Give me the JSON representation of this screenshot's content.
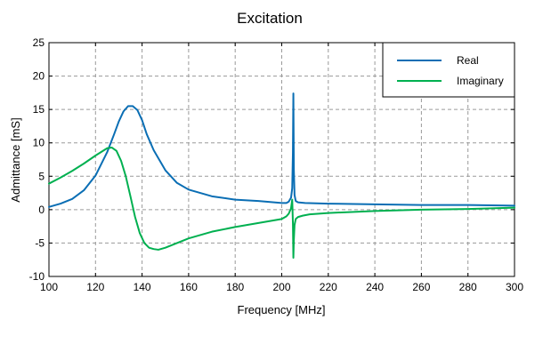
{
  "chart_data": {
    "type": "line",
    "title": "Excitation",
    "xlabel": "Frequency [MHz]",
    "ylabel": "Admittance [mS]",
    "xlim": [
      100,
      300
    ],
    "ylim": [
      -10,
      25
    ],
    "xticks": [
      100,
      120,
      140,
      160,
      180,
      200,
      220,
      240,
      260,
      280,
      300
    ],
    "yticks": [
      -10,
      -5,
      0,
      5,
      10,
      15,
      20,
      25
    ],
    "grid": true,
    "legend_position": "top-right",
    "series": [
      {
        "name": "Real",
        "color": "#0a6eb4",
        "x": [
          100,
          105,
          110,
          115,
          120,
          125,
          128,
          130,
          132,
          134,
          136,
          138,
          140,
          142,
          145,
          150,
          155,
          160,
          170,
          180,
          190,
          200,
          202,
          203,
          204,
          204.5,
          204.8,
          205.0,
          205.2,
          205.5,
          206,
          207,
          210,
          220,
          240,
          260,
          280,
          300
        ],
        "values": [
          0.4,
          0.9,
          1.6,
          2.9,
          5.1,
          8.6,
          11.3,
          13.2,
          14.7,
          15.5,
          15.5,
          14.9,
          13.4,
          11.3,
          8.9,
          5.9,
          4.0,
          3.0,
          2.0,
          1.5,
          1.3,
          1.0,
          1.0,
          1.2,
          1.8,
          3.2,
          8.5,
          17.4,
          6.0,
          2.2,
          1.3,
          1.1,
          1.0,
          0.9,
          0.8,
          0.7,
          0.7,
          0.6
        ]
      },
      {
        "name": "Imaginary",
        "color": "#00b050",
        "x": [
          100,
          105,
          110,
          115,
          120,
          125,
          127,
          129,
          131,
          133,
          135,
          137,
          139,
          141,
          143,
          145,
          147,
          150,
          155,
          160,
          170,
          180,
          190,
          200,
          202,
          203,
          204,
          204.5,
          204.8,
          205.0,
          205.2,
          205.5,
          206,
          207,
          209,
          212,
          220,
          240,
          260,
          280,
          300
        ],
        "values": [
          3.9,
          4.8,
          5.8,
          6.9,
          8.1,
          9.2,
          9.3,
          8.8,
          7.3,
          5.0,
          2.0,
          -1.1,
          -3.5,
          -5.0,
          -5.7,
          -5.9,
          -6.0,
          -5.7,
          -5.0,
          -4.3,
          -3.3,
          -2.6,
          -2.0,
          -1.4,
          -1.0,
          -0.6,
          0.2,
          1.5,
          -2.0,
          -7.2,
          -4.5,
          -2.3,
          -1.4,
          -1.1,
          -0.9,
          -0.7,
          -0.5,
          -0.2,
          0.0,
          0.1,
          0.3
        ]
      }
    ]
  }
}
